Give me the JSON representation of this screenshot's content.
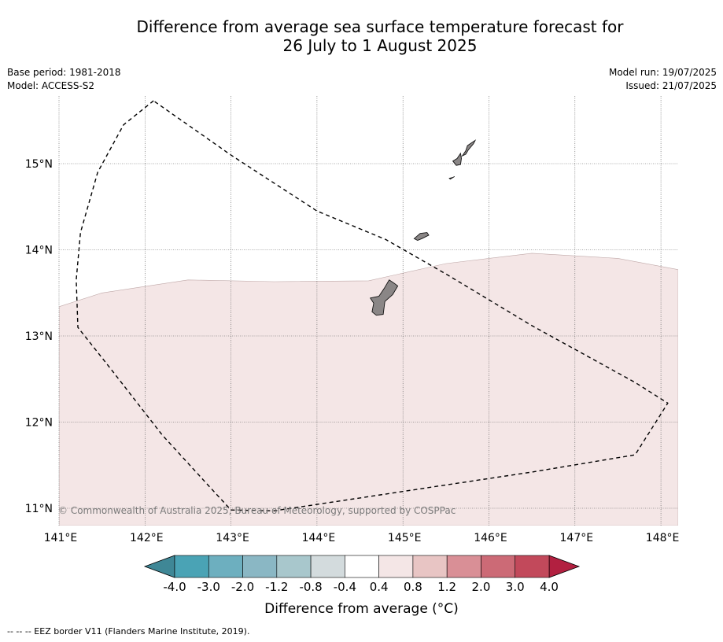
{
  "title_line1": "Difference from average sea surface temperature forecast for",
  "title_line2": "26 July to 1 August 2025",
  "meta_left": [
    "Base period: 1981-2018",
    "Model: ACCESS-S2"
  ],
  "meta_right": [
    "Model run: 19/07/2025",
    "Issued: 21/07/2025"
  ],
  "copyright": "© Commonwealth of Australia 2025, Bureau of Meteorology, supported by COSPPac",
  "colorbar_label": "Difference from average (°C)",
  "footer_note": "-- -- -- EEZ border V11 (Flanders Marine Institute, 2019).",
  "chart_data": {
    "type": "heatmap",
    "title": "Difference from average sea surface temperature forecast for 26 July to 1 August 2025",
    "x_axis": {
      "label": "",
      "range": [
        141.0,
        148.2
      ],
      "ticks": [
        141,
        142,
        143,
        144,
        145,
        146,
        147,
        148
      ],
      "tick_labels": [
        "141°E",
        "142°E",
        "143°E",
        "144°E",
        "145°E",
        "146°E",
        "147°E",
        "148°E"
      ]
    },
    "y_axis": {
      "label": "",
      "range": [
        10.8,
        15.8
      ],
      "ticks": [
        11,
        12,
        13,
        14,
        15
      ],
      "tick_labels": [
        "11°N",
        "12°N",
        "13°N",
        "14°N",
        "15°N"
      ]
    },
    "grid": true,
    "colorbar": {
      "boundaries": [
        "-4.0",
        "-3.0",
        "-2.0",
        "-1.2",
        "-0.8",
        "-0.4",
        "0.4",
        "0.8",
        "1.2",
        "2.0",
        "3.0",
        "4.0"
      ],
      "colors": [
        "#4aa3b5",
        "#6dafbf",
        "#8ab7c4",
        "#a8c7cc",
        "#d3dbdd",
        "#ffffff",
        "#f4e6e6",
        "#e8c5c4",
        "#d98f96",
        "#cc6a76",
        "#c2495b"
      ],
      "under_color": "#3f8796",
      "over_color": "#b22040",
      "extend": "both"
    },
    "anomaly_region": {
      "category_range": [
        0.4,
        0.8
      ],
      "color": "#f4e6e6",
      "northern_boundary": [
        [
          141.0,
          13.34
        ],
        [
          141.5,
          13.5
        ],
        [
          142.5,
          13.65
        ],
        [
          143.5,
          13.63
        ],
        [
          144.6,
          13.64
        ],
        [
          145.5,
          13.84
        ],
        [
          146.5,
          13.96
        ],
        [
          147.5,
          13.9
        ],
        [
          148.2,
          13.77
        ]
      ]
    },
    "background_category_range": [
      -0.4,
      0.4
    ],
    "background_color": "#ffffff",
    "eez_border": [
      [
        142.1,
        15.73
      ],
      [
        141.75,
        15.45
      ],
      [
        141.45,
        14.9
      ],
      [
        141.25,
        14.2
      ],
      [
        141.2,
        13.65
      ],
      [
        141.22,
        13.1
      ],
      [
        141.6,
        12.62
      ],
      [
        142.2,
        11.85
      ],
      [
        142.75,
        11.25
      ],
      [
        143.0,
        10.98
      ],
      [
        143.5,
        10.97
      ],
      [
        144.5,
        11.12
      ],
      [
        145.5,
        11.27
      ],
      [
        146.5,
        11.42
      ],
      [
        147.7,
        11.62
      ],
      [
        148.08,
        12.22
      ],
      [
        147.7,
        12.46
      ],
      [
        146.5,
        13.12
      ],
      [
        145.5,
        13.72
      ],
      [
        144.8,
        14.12
      ],
      [
        144.0,
        14.45
      ],
      [
        143.0,
        15.1
      ],
      [
        142.1,
        15.73
      ]
    ],
    "islands": [
      [
        [
          144.62,
          13.44
        ],
        [
          144.72,
          13.46
        ],
        [
          144.78,
          13.55
        ],
        [
          144.84,
          13.65
        ],
        [
          144.9,
          13.61
        ],
        [
          144.94,
          13.58
        ],
        [
          144.88,
          13.48
        ],
        [
          144.79,
          13.4
        ],
        [
          144.77,
          13.25
        ],
        [
          144.69,
          13.24
        ],
        [
          144.64,
          13.28
        ],
        [
          144.66,
          13.38
        ]
      ],
      [
        [
          145.13,
          14.13
        ],
        [
          145.2,
          14.19
        ],
        [
          145.28,
          14.2
        ],
        [
          145.3,
          14.17
        ],
        [
          145.22,
          14.13
        ],
        [
          145.17,
          14.11
        ]
      ],
      [
        [
          145.58,
          15.03
        ],
        [
          145.63,
          15.06
        ],
        [
          145.67,
          15.12
        ],
        [
          145.68,
          15.06
        ],
        [
          145.67,
          14.99
        ],
        [
          145.62,
          14.98
        ]
      ],
      [
        [
          145.69,
          15.09
        ],
        [
          145.73,
          15.15
        ],
        [
          145.75,
          15.21
        ],
        [
          145.84,
          15.27
        ],
        [
          145.82,
          15.23
        ],
        [
          145.76,
          15.16
        ],
        [
          145.73,
          15.11
        ]
      ],
      [
        [
          145.54,
          14.83
        ],
        [
          145.58,
          14.84
        ],
        [
          145.6,
          14.85
        ],
        [
          145.55,
          14.82
        ]
      ]
    ]
  }
}
